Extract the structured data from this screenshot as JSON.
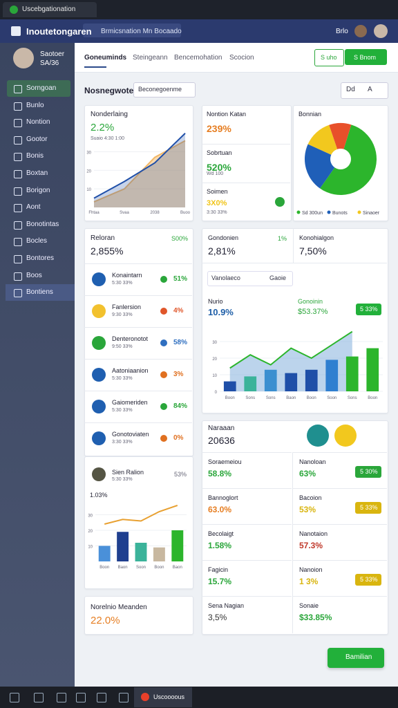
{
  "browser": {
    "tab_title": "Uscebgationation"
  },
  "header": {
    "app_name": "Inoutetongaren",
    "search": "Brmicsnation Mn Bocaado",
    "user": "Brlo"
  },
  "sidebar": {
    "user_name": "Saotoer",
    "user_sub": "SA/36",
    "items": [
      "Sorngoan",
      "Bunlo",
      "Nontion",
      "Gootor",
      "Bonis",
      "Boxtan",
      "Borigon",
      "Aont",
      "Bonotintas",
      "Bocles",
      "Bontores",
      "Boos",
      "Bontiens"
    ]
  },
  "tabs": [
    "Goneuminds",
    "Steingeann",
    "Bencemohation",
    "Scocion"
  ],
  "tab_buttons": [
    "S uho",
    "S Bnom"
  ],
  "section": {
    "title": "Nosnegwoten",
    "dropdown": "Beconegoenme",
    "controls": [
      "Dd",
      "A"
    ]
  },
  "trend_card": {
    "title": "Nonderlaing",
    "value": "2.2%",
    "sub": "Suaio 4:30 1:00",
    "chart": {
      "type": "line",
      "categories": [
        "Fhtaa",
        "Svaa",
        "2038",
        "Buoo"
      ],
      "series": [
        {
          "color": "#f2b766",
          "values": [
            3,
            10,
            27,
            36
          ]
        },
        {
          "color": "#1f4fa8",
          "values": [
            5,
            14,
            24,
            40
          ]
        }
      ],
      "ylim": [
        0,
        44
      ],
      "yticks": [
        10,
        20,
        30
      ]
    }
  },
  "kpi_card": {
    "rows": [
      {
        "title": "Nontion Katan",
        "value": "239%",
        "color": "#e67e22"
      },
      {
        "title": "Sobrtuan",
        "value": "520%",
        "sub": "Wd 100",
        "color": "#2aa63a"
      },
      {
        "title": "Soimen",
        "value": "3X0%",
        "sub": "3:30 33%",
        "color": "#f0c419"
      }
    ]
  },
  "pie_card": {
    "title": "Bonnian",
    "chart": {
      "type": "pie",
      "categories": [
        "Sd 300un",
        "Bunots",
        "Sinaoer",
        null
      ],
      "values": [
        55,
        22,
        13,
        10
      ],
      "colors": [
        "#2cb52c",
        "#1f5fb8",
        "#f2c81e",
        "#e8502a"
      ]
    }
  },
  "list_card": {
    "title": "Reloran",
    "value": "2,855%",
    "badge": "S00%",
    "items": [
      {
        "name": "Konaintarn",
        "sub": "5:30 33%",
        "value": "51%",
        "color": "#1f5fb0",
        "value_color": "#2aa63a"
      },
      {
        "name": "Fanlersion",
        "sub": "9:30 33%",
        "value": "4%",
        "color": "#f2c12e",
        "value_color": "#e0562a"
      },
      {
        "name": "Denteronotot",
        "sub": "9:50 33%",
        "value": "58%",
        "color": "#2aa63a",
        "value_color": "#2f6fc0"
      },
      {
        "name": "Aatoniaanion",
        "sub": "5:30 33%",
        "value": "3%",
        "color": "#1f5fb0",
        "value_color": "#e07020"
      },
      {
        "name": "Gaiomeriden",
        "sub": "5:30 33%",
        "value": "84%",
        "color": "#1f5fb0",
        "value_color": "#2aa63a"
      },
      {
        "name": "Gonotoviaten",
        "sub": "3:30 33%",
        "value": "0%",
        "color": "#1f5fb0",
        "value_color": "#e07020"
      }
    ]
  },
  "mini_card": {
    "name": "Sien Ralion",
    "sub": "5:30 33%",
    "value": "53%",
    "chart": {
      "type": "bar",
      "title": "1.03%",
      "categories": [
        "Boon",
        "Baon",
        "Soon",
        "Boon",
        "Baon"
      ],
      "values": [
        10,
        19,
        12,
        9,
        20
      ],
      "colors": [
        "#4a90d9",
        "#1f3f8f",
        "#3bb39a",
        "#c8b8a0",
        "#2cb52c"
      ],
      "line": {
        "color": "#e8a030",
        "values": [
          24,
          27,
          26,
          32,
          36
        ]
      },
      "ylim": [
        0,
        40
      ],
      "yticks": [
        10,
        20,
        30
      ]
    }
  },
  "note_card": {
    "title": "Norelnio Meanden",
    "value": "22.0%"
  },
  "wide_card": {
    "left_title": "Gondonien",
    "left_value": "2,81%",
    "left_badge": "1%",
    "right_title": "Konohialgon",
    "right_value": "7,50%",
    "filter": "Vanolaeco",
    "filter_button": "Gaoie",
    "metric_title": "Nurio",
    "metric_value": "10.9%",
    "metric2_title": "Gonoinin",
    "metric2_value": "$53.37%",
    "metric2_badge": "5 33%",
    "chart": {
      "type": "bar",
      "categories": [
        "Boon",
        "Sons",
        "Sons",
        "Baon",
        "Boon",
        "Soon",
        "Sons",
        "Boon"
      ],
      "values": [
        6,
        9,
        13,
        11,
        13,
        19,
        21,
        26
      ],
      "colors": [
        "#1f4fa8",
        "#3bb39a",
        "#3b8fd0",
        "#1f4fa8",
        "#1f4fa8",
        "#2f7fd0",
        "#2cb52c",
        "#2cb52c"
      ],
      "area": {
        "color": "#2cb52c",
        "values": [
          14,
          22,
          16,
          26,
          20,
          28,
          36,
          null
        ]
      },
      "ylim": [
        0,
        40
      ],
      "yticks": [
        0,
        10,
        20,
        30
      ]
    }
  },
  "summary_card": {
    "title": "Naraaan",
    "value": "20636",
    "cells": [
      {
        "title": "Soraemeiou",
        "value": "58.8%",
        "color": "#2aa63a"
      },
      {
        "title": "Nanoloan",
        "value": "63%",
        "color": "#2aa63a",
        "badge": "5 30%"
      },
      {
        "title": "Bannoglort",
        "value": "63.0%",
        "color": "#e67e22"
      },
      {
        "title": "Bacoion",
        "value": "53%",
        "color": "#d9b50f",
        "badge": "5 33%"
      },
      {
        "title": "Becolaigt",
        "value": "1.58%",
        "color": "#2aa63a"
      },
      {
        "title": "Nanotaion",
        "value": "57.3%",
        "color": "#c0392b"
      },
      {
        "title": "Fagicin",
        "value": "15.7%",
        "color": "#2aa63a"
      },
      {
        "title": "Nanoion",
        "value": "1 3%",
        "color": "#d9b50f",
        "badge": "5 33%"
      },
      {
        "title": "Sena Nagian",
        "value": "3,5%",
        "color": "#333333"
      },
      {
        "title": "Sonaie",
        "value": "$33.85%",
        "color": "#2aa63a"
      }
    ]
  },
  "float_button": "Bamilian",
  "taskbar": {
    "active": "Uscoooous"
  }
}
